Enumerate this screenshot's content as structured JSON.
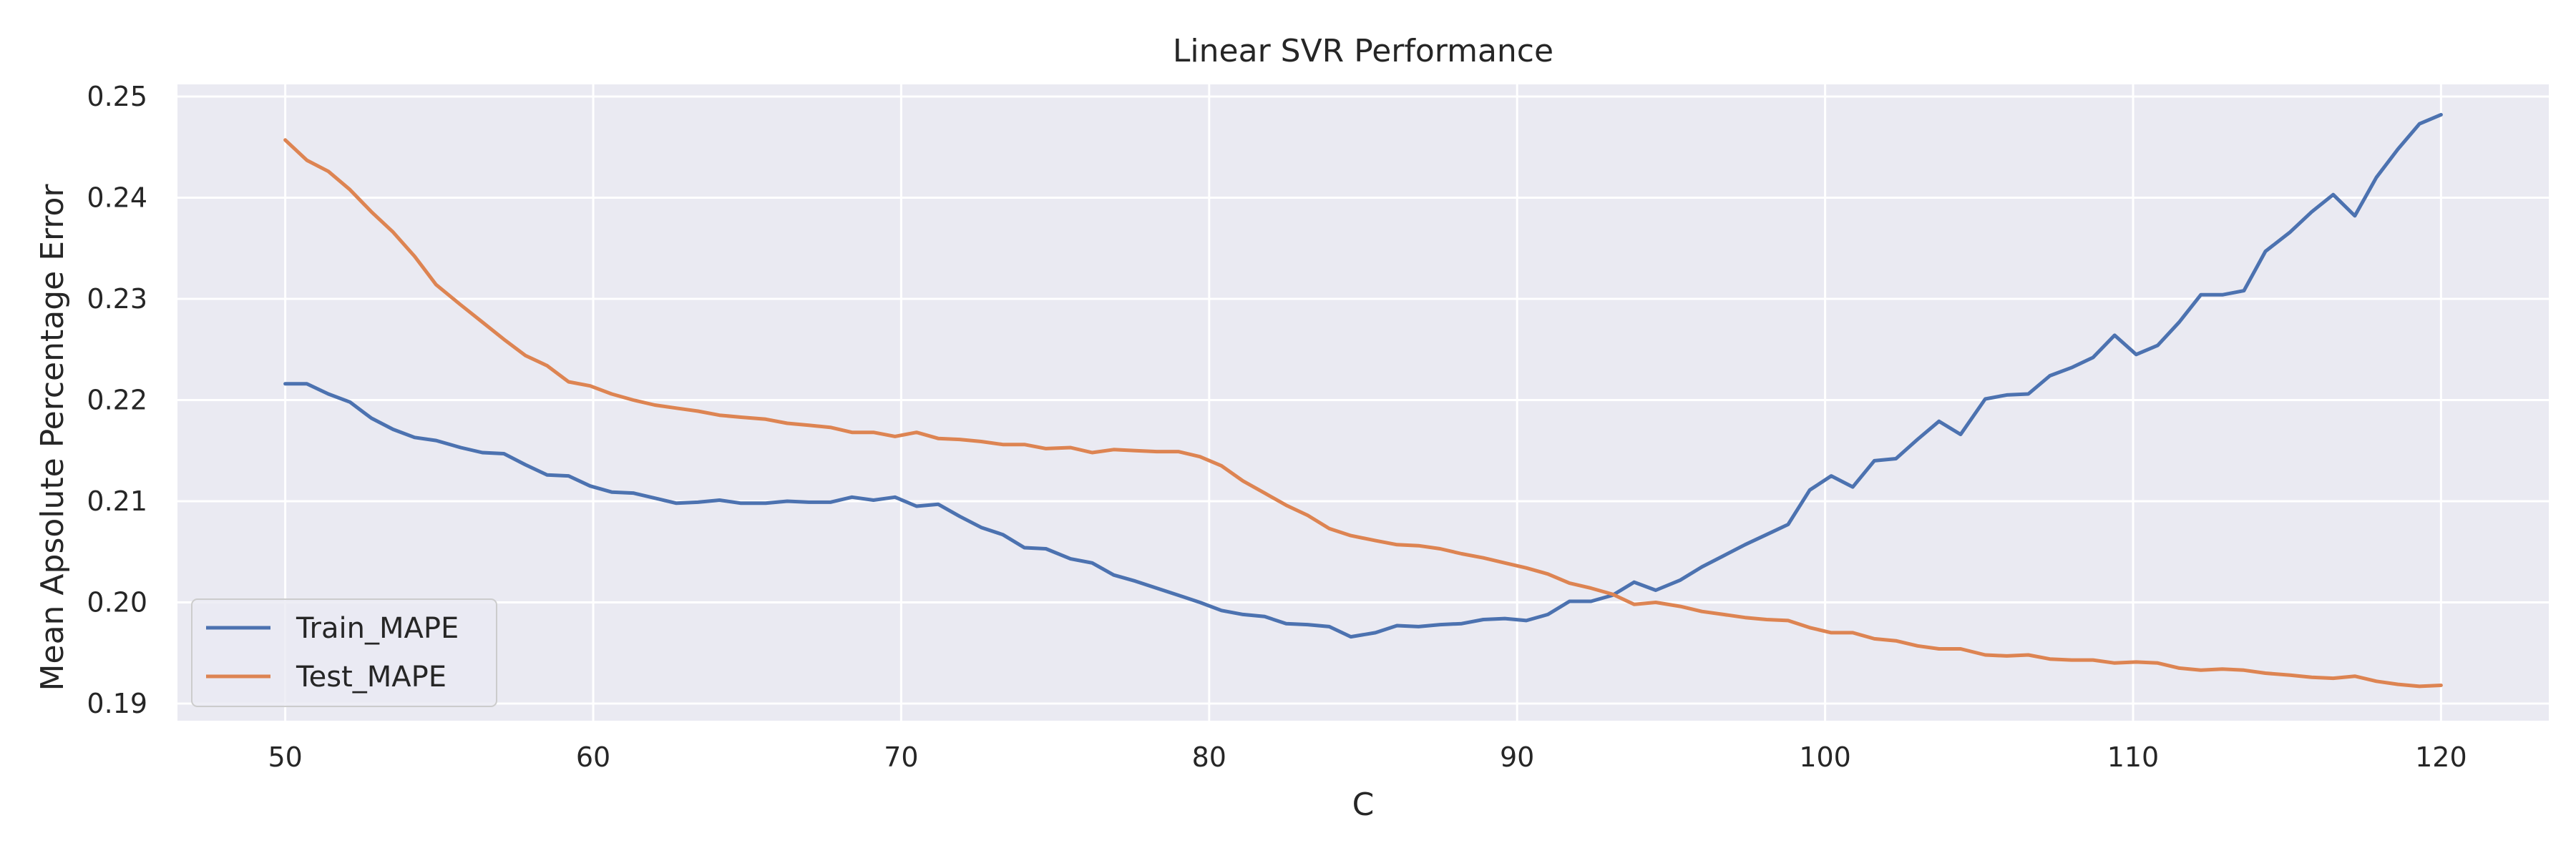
{
  "chart_data": {
    "type": "line",
    "title": "Linear SVR Performance",
    "xlabel": "C",
    "ylabel": "Mean Apsolute Percentage Error",
    "xlim": [
      46.5,
      123.5
    ],
    "ylim": [
      0.1883,
      0.2512
    ],
    "xticks": [
      "50",
      "60",
      "70",
      "80",
      "90",
      "100",
      "110",
      "120"
    ],
    "yticks": [
      "0.19",
      "0.20",
      "0.21",
      "0.22",
      "0.23",
      "0.24",
      "0.25"
    ],
    "grid": true,
    "legend_position": "lower-left",
    "x": [
      50,
      50.7,
      51.4,
      52.1,
      52.8,
      53.5,
      54.2,
      54.9,
      55.7,
      56.4,
      57.1,
      57.8,
      58.5,
      59.2,
      59.9,
      60.6,
      61.3,
      62.0,
      62.7,
      63.4,
      64.1,
      64.8,
      65.6,
      66.3,
      67.0,
      67.7,
      68.4,
      69.1,
      69.8,
      70.5,
      71.2,
      71.9,
      72.6,
      73.3,
      74.0,
      74.7,
      75.5,
      76.2,
      76.9,
      77.6,
      78.3,
      79.0,
      79.7,
      80.4,
      81.1,
      81.8,
      82.5,
      83.2,
      83.9,
      84.6,
      85.4,
      86.1,
      86.8,
      87.5,
      88.2,
      88.9,
      89.6,
      90.3,
      91.0,
      91.7,
      92.4,
      93.1,
      93.8,
      94.5,
      95.3,
      96.0,
      96.7,
      97.4,
      98.1,
      98.8,
      99.5,
      100.2,
      100.9,
      101.6,
      102.3,
      103.0,
      103.7,
      104.4,
      105.2,
      105.9,
      106.6,
      107.3,
      108.0,
      108.7,
      109.4,
      110.1,
      110.8,
      111.5,
      112.2,
      112.9,
      113.6,
      114.3,
      115.1,
      115.8,
      116.5,
      117.2,
      117.9,
      118.6,
      119.3,
      120.0
    ],
    "series": [
      {
        "name": "Train_MAPE",
        "color": "#4c72b0",
        "values": [
          0.2216,
          0.2216,
          0.2206,
          0.2198,
          0.2182,
          0.2171,
          0.2163,
          0.216,
          0.2153,
          0.2148,
          0.2147,
          0.2136,
          0.2126,
          0.2125,
          0.2115,
          0.2109,
          0.2108,
          0.2103,
          0.2098,
          0.2099,
          0.2101,
          0.2098,
          0.2098,
          0.21,
          0.2099,
          0.2099,
          0.2104,
          0.2101,
          0.2104,
          0.2095,
          0.2097,
          0.2085,
          0.2074,
          0.2067,
          0.2054,
          0.2053,
          0.2043,
          0.2039,
          0.2027,
          0.2021,
          0.2014,
          0.2007,
          0.2,
          0.1992,
          0.1988,
          0.1986,
          0.1979,
          0.1978,
          0.1976,
          0.1966,
          0.197,
          0.1977,
          0.1976,
          0.1978,
          0.1979,
          0.1983,
          0.1984,
          0.1982,
          0.1988,
          0.2001,
          0.2001,
          0.2007,
          0.202,
          0.2012,
          0.2022,
          0.2035,
          0.2046,
          0.2057,
          0.2067,
          0.2077,
          0.2111,
          0.2125,
          0.2114,
          0.214,
          0.2142,
          0.2161,
          0.2179,
          0.2166,
          0.2201,
          0.2205,
          0.2206,
          0.2224,
          0.2232,
          0.2242,
          0.2264,
          0.2245,
          0.2254,
          0.2277,
          0.2304,
          0.2304,
          0.2308,
          0.2347,
          0.2366,
          0.2386,
          0.2403,
          0.2382,
          0.242,
          0.2448,
          0.2473,
          0.2482
        ]
      },
      {
        "name": "Test_MAPE",
        "color": "#dd8452",
        "values": [
          0.2457,
          0.2437,
          0.2426,
          0.2408,
          0.2386,
          0.2366,
          0.2342,
          0.2314,
          0.2294,
          0.2277,
          0.226,
          0.2244,
          0.2234,
          0.2218,
          0.2214,
          0.2206,
          0.22,
          0.2195,
          0.2192,
          0.2189,
          0.2185,
          0.2183,
          0.2181,
          0.2177,
          0.2175,
          0.2173,
          0.2168,
          0.2168,
          0.2164,
          0.2168,
          0.2162,
          0.2161,
          0.2159,
          0.2156,
          0.2156,
          0.2152,
          0.2153,
          0.2148,
          0.2151,
          0.215,
          0.2149,
          0.2149,
          0.2144,
          0.2135,
          0.212,
          0.2108,
          0.2096,
          0.2086,
          0.2073,
          0.2066,
          0.2061,
          0.2057,
          0.2056,
          0.2053,
          0.2048,
          0.2044,
          0.2039,
          0.2034,
          0.2028,
          0.2019,
          0.2014,
          0.2008,
          0.1998,
          0.2,
          0.1996,
          0.1991,
          0.1988,
          0.1985,
          0.1983,
          0.1982,
          0.1975,
          0.197,
          0.197,
          0.1964,
          0.1962,
          0.1957,
          0.1954,
          0.1954,
          0.1948,
          0.1947,
          0.1948,
          0.1944,
          0.1943,
          0.1943,
          0.194,
          0.1941,
          0.194,
          0.1935,
          0.1933,
          0.1934,
          0.1933,
          0.193,
          0.1928,
          0.1926,
          0.1925,
          0.1927,
          0.1922,
          0.1919,
          0.1917,
          0.1918
        ]
      }
    ]
  },
  "colors": {
    "plot_background": "#eaeaf2",
    "grid": "#ffffff",
    "text": "#262626"
  }
}
